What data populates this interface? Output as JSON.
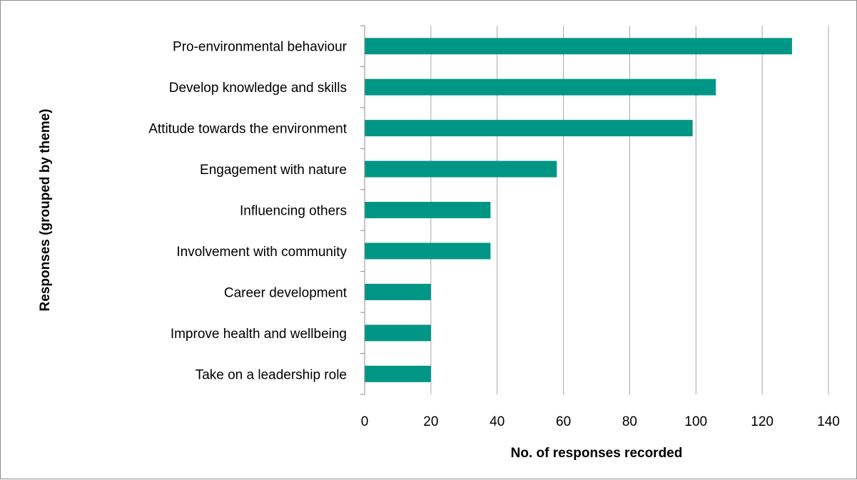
{
  "chart_data": {
    "type": "bar",
    "orientation": "horizontal",
    "categories": [
      "Pro-environmental behaviour",
      "Develop knowledge and skills",
      "Attitude towards the environment",
      "Engagement with nature",
      "Influencing others",
      "Involvement with community",
      "Career development",
      "Improve health and wellbeing",
      "Take on a leadership role"
    ],
    "values": [
      129,
      106,
      99,
      58,
      38,
      38,
      20,
      20,
      20
    ],
    "xlabel": "No. of responses recorded",
    "ylabel": "Responses (grouped by theme)",
    "xlim": [
      0,
      140
    ],
    "xticks": [
      0,
      20,
      40,
      60,
      80,
      100,
      120,
      140
    ],
    "grid": "vertical",
    "bar_color": "#009685",
    "grid_color": "#a6a6a6"
  }
}
